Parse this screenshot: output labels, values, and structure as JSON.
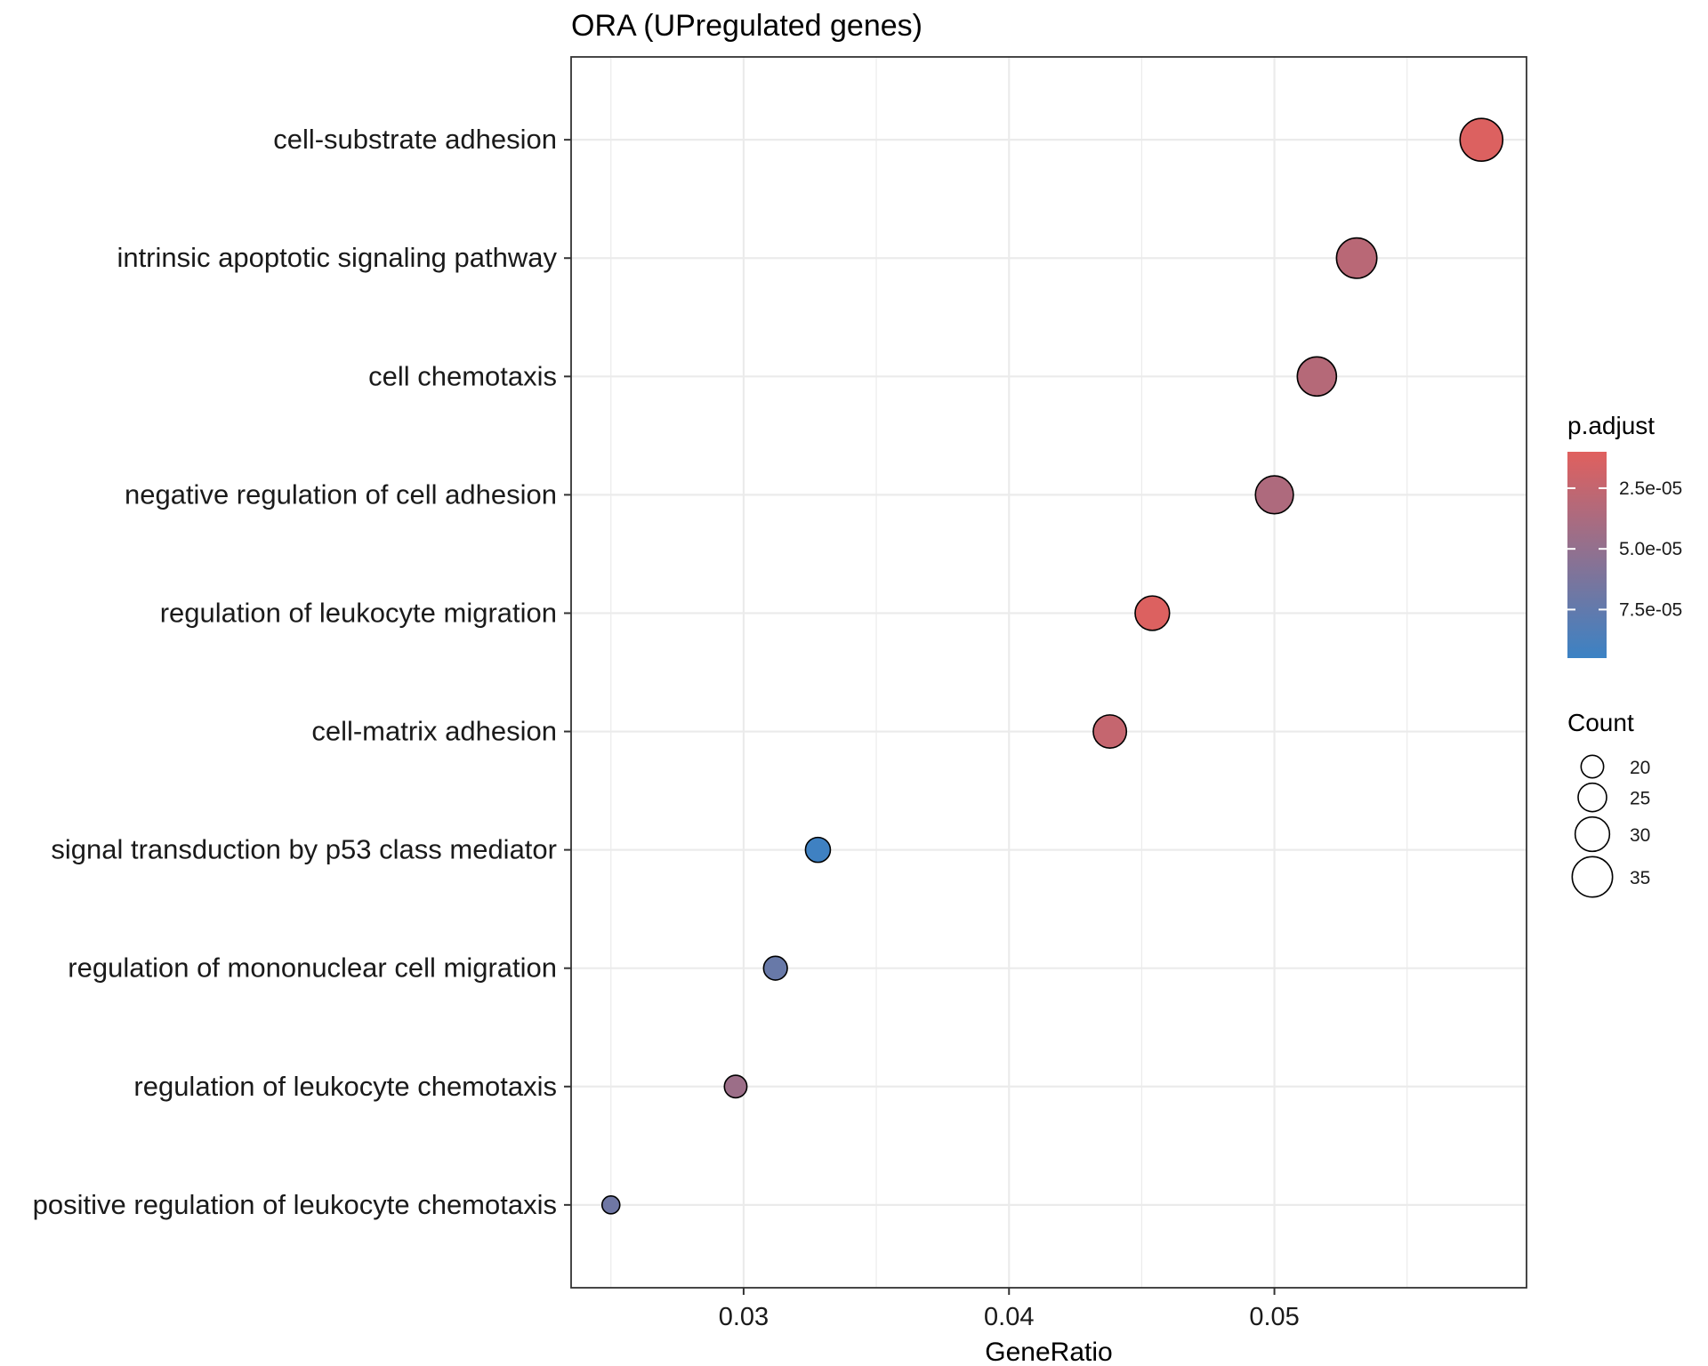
{
  "chart_data": {
    "type": "scatter",
    "title": "ORA (UPregulated genes)",
    "xlabel": "GeneRatio",
    "ylabel": "",
    "xlim": [
      0.0235,
      0.0595
    ],
    "xticks": [
      0.03,
      0.04,
      0.05
    ],
    "xtick_labels": [
      "0.03",
      "0.04",
      "0.05"
    ],
    "grid": true,
    "legend_position": "right",
    "points": [
      {
        "term": "cell-substrate adhesion",
        "gene_ratio": 0.0578,
        "count": 37,
        "p_adjust": 1.2e-05
      },
      {
        "term": "intrinsic apoptotic signaling pathway",
        "gene_ratio": 0.0531,
        "count": 35,
        "p_adjust": 3e-05
      },
      {
        "term": "cell chemotaxis",
        "gene_ratio": 0.0516,
        "count": 34,
        "p_adjust": 3.2e-05
      },
      {
        "term": "negative regulation of cell adhesion",
        "gene_ratio": 0.05,
        "count": 33,
        "p_adjust": 3.6e-05
      },
      {
        "term": "regulation of leukocyte migration",
        "gene_ratio": 0.0454,
        "count": 30,
        "p_adjust": 1.2e-05
      },
      {
        "term": "cell-matrix adhesion",
        "gene_ratio": 0.0438,
        "count": 29,
        "p_adjust": 2.4e-05
      },
      {
        "term": "signal transduction by p53 class mediator",
        "gene_ratio": 0.0328,
        "count": 22,
        "p_adjust": 9.3e-05
      },
      {
        "term": "regulation of mononuclear cell migration",
        "gene_ratio": 0.0312,
        "count": 21,
        "p_adjust": 7.2e-05
      },
      {
        "term": "regulation of leukocyte chemotaxis",
        "gene_ratio": 0.0297,
        "count": 20,
        "p_adjust": 4.5e-05
      },
      {
        "term": "positive regulation of leukocyte chemotaxis",
        "gene_ratio": 0.025,
        "count": 16,
        "p_adjust": 6.8e-05
      }
    ],
    "color_legend": {
      "title": "p.adjust",
      "low_color": "#e0605e",
      "high_color": "#3b82c4",
      "range": [
        1e-05,
        9.5e-05
      ],
      "ticks": [
        2.5e-05,
        5e-05,
        7.5e-05
      ],
      "tick_labels": [
        "2.5e-05",
        "5.0e-05",
        "7.5e-05"
      ]
    },
    "size_legend": {
      "title": "Count",
      "values": [
        20,
        25,
        30,
        35
      ],
      "labels": [
        "20",
        "25",
        "30",
        "35"
      ],
      "range": [
        16,
        37
      ]
    }
  }
}
